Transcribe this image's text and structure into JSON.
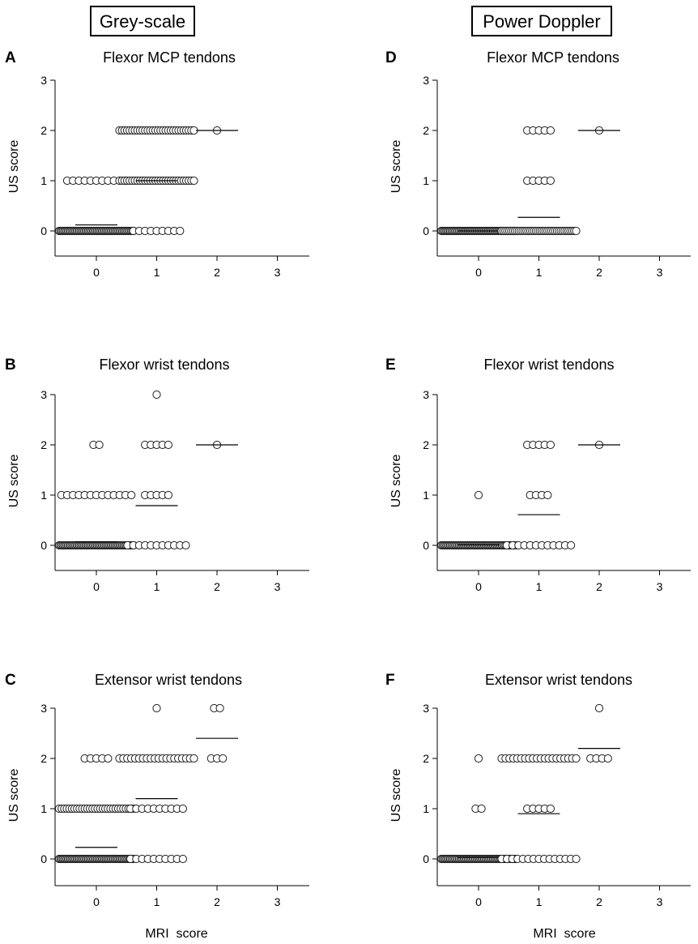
{
  "column_headers": [
    "Grey-scale",
    "Power Doppler"
  ],
  "x_axis_title": "MRI  score",
  "chart_data": [
    {
      "panel": "A",
      "type": "scatter",
      "title": "Flexor  MCP tendons",
      "ylabel": "US score",
      "xticks": [
        "0",
        "1",
        "2",
        "3"
      ],
      "yticks": [
        "0",
        "1",
        "2",
        "3"
      ],
      "xlim": [
        -0.7,
        3.4
      ],
      "ylim": [
        -0.5,
        3
      ],
      "groups": [
        {
          "x": 0,
          "counts": {
            "0": 60,
            "1": 11
          },
          "mean": 0.12
        },
        {
          "x": 1,
          "counts": {
            "0": 9,
            "1": 30,
            "2": 30
          },
          "mean": 1.0
        },
        {
          "x": 2,
          "counts": {
            "2": 1
          },
          "mean": 2.0
        }
      ]
    },
    {
      "panel": "B",
      "type": "scatter",
      "title": "Flexor wrist tendons",
      "ylabel": "US score",
      "xticks": [
        "0",
        "1",
        "2",
        "3"
      ],
      "yticks": [
        "0",
        "1",
        "2",
        "3"
      ],
      "xlim": [
        -0.7,
        3.4
      ],
      "ylim": [
        -0.5,
        3
      ],
      "groups": [
        {
          "x": 0,
          "counts": {
            "0": 60,
            "1": 13,
            "2": 2
          },
          "mean": 0.07
        },
        {
          "x": 1,
          "counts": {
            "0": 11,
            "1": 5,
            "2": 5,
            "3": 1
          },
          "mean": 0.79
        },
        {
          "x": 2,
          "counts": {
            "2": 1
          },
          "mean": 2.0
        }
      ]
    },
    {
      "panel": "C",
      "type": "scatter",
      "title": "Extensor wrist tendons",
      "ylabel": "US score",
      "xticks": [
        "0",
        "1",
        "2",
        "3"
      ],
      "yticks": [
        "0",
        "1",
        "2",
        "3"
      ],
      "xlim": [
        -0.7,
        3.4
      ],
      "ylim": [
        -0.5,
        3
      ],
      "groups": [
        {
          "x": 0,
          "counts": {
            "0": 60,
            "1": 30,
            "2": 5
          },
          "mean": 0.23
        },
        {
          "x": 1,
          "counts": {
            "0": 10,
            "1": 10,
            "2": 20,
            "3": 1
          },
          "mean": 1.2
        },
        {
          "x": 2,
          "counts": {
            "2": 3,
            "3": 2
          },
          "mean": 2.4
        }
      ]
    },
    {
      "panel": "D",
      "type": "scatter",
      "title": "Flexor  MCP tendons",
      "ylabel": "US score",
      "xticks": [
        "0",
        "1",
        "2",
        "3"
      ],
      "yticks": [
        "0",
        "1",
        "2",
        "3"
      ],
      "xlim": [
        -0.7,
        3.4
      ],
      "ylim": [
        -0.5,
        3
      ],
      "groups": [
        {
          "x": 0,
          "counts": {
            "0": 60
          },
          "mean": 0.0
        },
        {
          "x": 1,
          "counts": {
            "0": 40,
            "1": 5,
            "2": 5
          },
          "mean": 0.27
        },
        {
          "x": 2,
          "counts": {
            "2": 1
          },
          "mean": 2.0
        }
      ]
    },
    {
      "panel": "E",
      "type": "scatter",
      "title": "Flexor wrist tendons",
      "ylabel": "US score",
      "xticks": [
        "0",
        "1",
        "2",
        "3"
      ],
      "yticks": [
        "0",
        "1",
        "2",
        "3"
      ],
      "xlim": [
        -0.7,
        3.4
      ],
      "ylim": [
        -0.5,
        3
      ],
      "groups": [
        {
          "x": 0,
          "counts": {
            "0": 60,
            "1": 1
          },
          "mean": 0.01
        },
        {
          "x": 1,
          "counts": {
            "0": 12,
            "1": 4,
            "2": 5
          },
          "mean": 0.61
        },
        {
          "x": 2,
          "counts": {
            "2": 1
          },
          "mean": 2.0
        }
      ]
    },
    {
      "panel": "F",
      "type": "scatter",
      "title": "Extensor wrist tendons",
      "ylabel": "US score",
      "xticks": [
        "0",
        "1",
        "2",
        "3"
      ],
      "yticks": [
        "0",
        "1",
        "2",
        "3"
      ],
      "xlim": [
        -0.7,
        3.4
      ],
      "ylim": [
        -0.5,
        3
      ],
      "groups": [
        {
          "x": 0,
          "counts": {
            "0": 60,
            "1": 2,
            "2": 1
          },
          "mean": 0.03
        },
        {
          "x": 1,
          "counts": {
            "0": 15,
            "1": 5,
            "2": 20
          },
          "mean": 0.9
        },
        {
          "x": 2,
          "counts": {
            "2": 4,
            "3": 1
          },
          "mean": 2.2
        }
      ]
    }
  ]
}
